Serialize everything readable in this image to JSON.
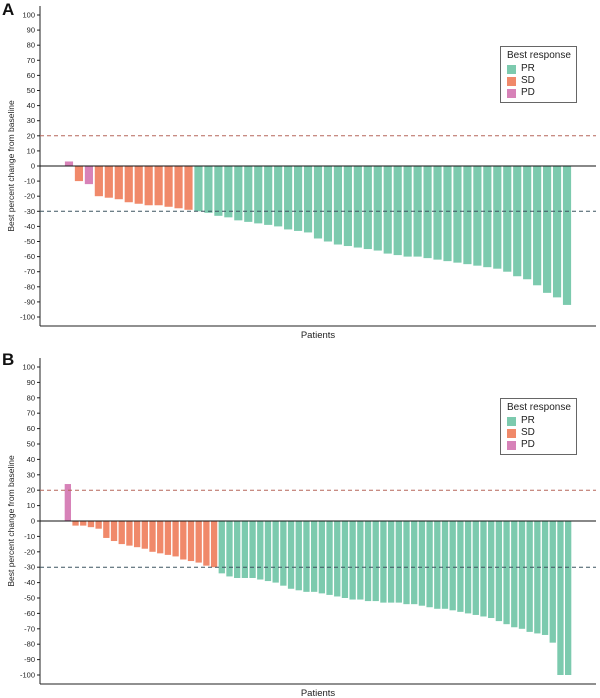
{
  "panels": [
    {
      "letter": "A",
      "legend": {
        "title": "Best response",
        "items": [
          {
            "label": "PR",
            "color": "#7ccaae"
          },
          {
            "label": "SD",
            "color": "#f0896a"
          },
          {
            "label": "PD",
            "color": "#d782b8"
          }
        ]
      }
    },
    {
      "letter": "B",
      "legend": {
        "title": "Best response",
        "items": [
          {
            "label": "PR",
            "color": "#7ccaae"
          },
          {
            "label": "SD",
            "color": "#f0896a"
          },
          {
            "label": "PD",
            "color": "#d782b8"
          }
        ]
      }
    }
  ],
  "chart_data": [
    {
      "type": "bar",
      "panel": "A",
      "xlabel": "Patients",
      "ylabel": "Best percent change from baseline",
      "ylim": [
        -100,
        100
      ],
      "yticks": [
        100,
        90,
        80,
        70,
        60,
        50,
        40,
        30,
        20,
        10,
        0,
        -10,
        -20,
        -30,
        -40,
        -50,
        -60,
        -70,
        -80,
        -90,
        -100
      ],
      "reference_lines": [
        {
          "y": 20,
          "color": "#b5675a",
          "style": "dashed"
        },
        {
          "y": -30,
          "color": "#3d5560",
          "style": "dashed"
        }
      ],
      "series": [
        {
          "response": "PD",
          "color": "#d782b8",
          "values": [
            3
          ]
        },
        {
          "response": "SD",
          "color": "#f0896a",
          "values": [
            -10
          ]
        },
        {
          "response": "PD",
          "color": "#d782b8",
          "values": [
            -12
          ]
        },
        {
          "response": "SD",
          "color": "#f0896a",
          "values": [
            -20,
            -21,
            -22,
            -24,
            -25,
            -26,
            -26,
            -27,
            -28,
            -29
          ]
        },
        {
          "response": "PR",
          "color": "#7ccaae",
          "values": [
            -30,
            -31,
            -33,
            -34,
            -36,
            -37,
            -38,
            -39,
            -40,
            -42,
            -43,
            -44,
            -48,
            -50,
            -52,
            -53,
            -54,
            -55,
            -56,
            -58,
            -59,
            -60,
            -60,
            -61,
            -62,
            -63,
            -64,
            -65,
            -66,
            -67,
            -68,
            -70,
            -73,
            -75,
            -79,
            -84,
            -87,
            -92
          ]
        }
      ]
    },
    {
      "type": "bar",
      "panel": "B",
      "xlabel": "Patients",
      "ylabel": "Best percent change from baseline",
      "ylim": [
        -100,
        100
      ],
      "yticks": [
        100,
        90,
        80,
        70,
        60,
        50,
        40,
        30,
        20,
        10,
        0,
        -10,
        -20,
        -30,
        -40,
        -50,
        -60,
        -70,
        -80,
        -90,
        -100
      ],
      "reference_lines": [
        {
          "y": 20,
          "color": "#b5675a",
          "style": "dashed"
        },
        {
          "y": -30,
          "color": "#3d5560",
          "style": "dashed"
        }
      ],
      "series": [
        {
          "response": "PD",
          "color": "#d782b8",
          "values": [
            24
          ]
        },
        {
          "response": "SD",
          "color": "#f0896a",
          "values": [
            -3,
            -3,
            -4,
            -5,
            -11,
            -13,
            -15,
            -16,
            -17,
            -18,
            -20,
            -21,
            -22,
            -23,
            -25,
            -26,
            -27,
            -29,
            -30
          ]
        },
        {
          "response": "PR",
          "color": "#7ccaae",
          "values": [
            -34,
            -36,
            -37,
            -37,
            -37,
            -38,
            -39,
            -40,
            -42,
            -44,
            -45,
            -46,
            -46,
            -47,
            -48,
            -49,
            -50,
            -51,
            -51,
            -52,
            -52,
            -53,
            -53,
            -53,
            -54,
            -54,
            -55,
            -56,
            -57,
            -57,
            -58,
            -59,
            -60,
            -61,
            -62,
            -63,
            -65,
            -67,
            -69,
            -70,
            -72,
            -73,
            -74,
            -79,
            -100,
            -100
          ]
        }
      ]
    }
  ]
}
